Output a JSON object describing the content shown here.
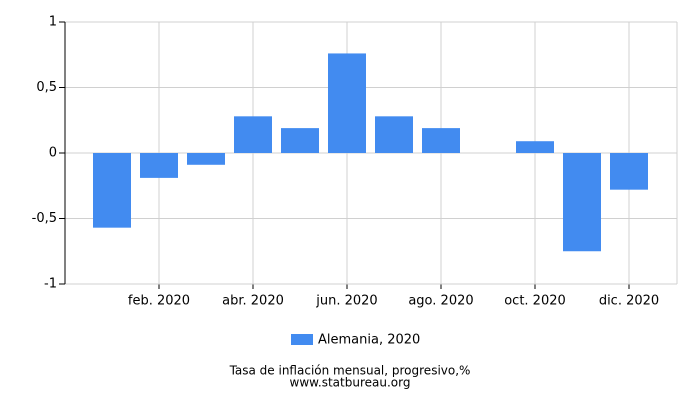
{
  "chart_data": {
    "type": "bar",
    "title": "Tasa de inflación mensual, progresivo,%",
    "source": "www.statbureau.org",
    "categories": [
      null,
      "feb. 2020",
      null,
      "abr. 2020",
      null,
      "jun. 2020",
      null,
      "ago. 2020",
      null,
      "oct. 2020",
      null,
      "dic. 2020"
    ],
    "series": [
      {
        "name": "Alemania, 2020",
        "color": "#428bf0",
        "values": [
          -0.57,
          -0.19,
          -0.09,
          0.28,
          0.19,
          0.76,
          0.28,
          0.19,
          0,
          0.09,
          -0.75,
          -0.28
        ]
      }
    ],
    "ylim": [
      -1,
      1
    ],
    "yticks": [
      -1,
      {
        "value": -0.5,
        "label": "-0,5"
      },
      0,
      {
        "value": 0.5,
        "label": "0,5"
      },
      1
    ],
    "grid": true
  }
}
